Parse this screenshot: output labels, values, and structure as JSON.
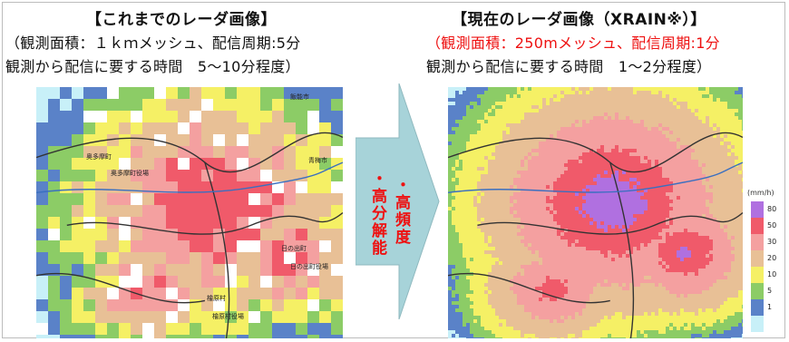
{
  "left": {
    "title": "【これまでのレーダ画像】",
    "line1": "（観測面積：１ｋｍメッシュ、配信周期:5分",
    "line2": "観測から配信に要する時間　5～10分程度）",
    "places": [
      "飯能市",
      "奥多摩町",
      "奥多摩町役場",
      "青梅市",
      "日の出町",
      "日の出町役場",
      "檜原村",
      "檜原村役場"
    ]
  },
  "right": {
    "title": "【現在のレーダ画像（XRAIN※）】",
    "line1_red": "（観測面積：250mメッシュ、配信周期:1分",
    "line2": "観測から配信に要する時間　1～2分程度）"
  },
  "arrow": {
    "text_a": "・高頻度",
    "text_b": "・高分解能"
  },
  "legend": {
    "unit": "(mm/h)",
    "items": [
      {
        "label": "80",
        "color": "#b070e0"
      },
      {
        "label": "50",
        "color": "#f05a6a"
      },
      {
        "label": "30",
        "color": "#f4a0a0"
      },
      {
        "label": "20",
        "color": "#e8c096"
      },
      {
        "label": "10",
        "color": "#f5f065"
      },
      {
        "label": "5",
        "color": "#8ccc66"
      },
      {
        "label": "1",
        "color": "#5a82c8"
      },
      {
        "label": "",
        "color": "#c8f0f8"
      }
    ]
  },
  "colors": {
    "arrow_fill": "#a7d3d9",
    "accent_red": "#ee1111"
  }
}
